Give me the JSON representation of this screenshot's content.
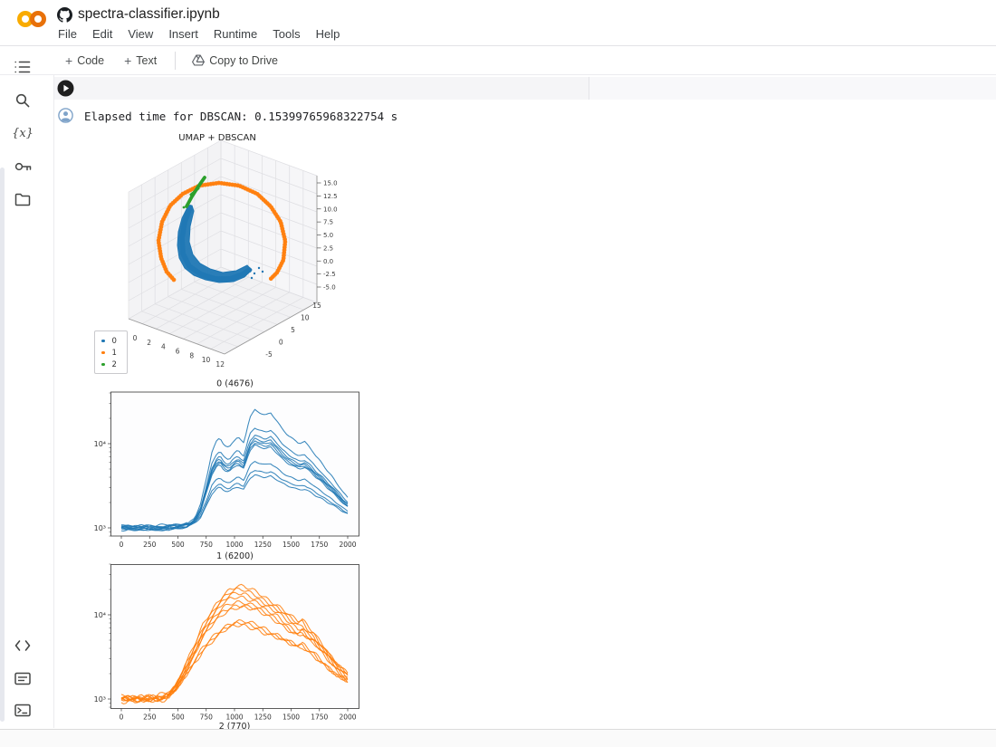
{
  "header": {
    "title": "spectra-classifier.ipynb",
    "menus": [
      "File",
      "Edit",
      "View",
      "Insert",
      "Runtime",
      "Tools",
      "Help"
    ]
  },
  "toolbar": {
    "add_code": "Code",
    "add_text": "Text",
    "plus": "+",
    "copy_to_drive": "Copy to Drive"
  },
  "sidebar": {
    "variables_glyph": "{x}"
  },
  "cell": {
    "output": "Elapsed time for DBSCAN: 0.15399765968322754 s"
  },
  "colors": {
    "logo_left": "#F9AB00",
    "logo_right": "#E8710A",
    "cluster_blue": "#1f77b4",
    "cluster_orange": "#ff7f0e",
    "cluster_green": "#2ca02c"
  },
  "chart_data": [
    {
      "type": "scatter3d",
      "title": "UMAP + DBSCAN",
      "legend": [
        "0",
        "1",
        "2"
      ],
      "legend_colors": [
        "#1f77b4",
        "#ff7f0e",
        "#2ca02c"
      ],
      "xticks": [
        "0",
        "2",
        "4",
        "6",
        "8",
        "10",
        "12"
      ],
      "yticks": [
        "15",
        "10",
        "5",
        "0",
        "-5"
      ],
      "zticks": [
        "15.0",
        "12.5",
        "10.0",
        "7.5",
        "5.0",
        "2.5",
        "0.0",
        "-2.5",
        "-5.0"
      ],
      "clusters": [
        {
          "label": "0",
          "color": "#1f77b4",
          "outline": [
            [
              108,
              82
            ],
            [
              101,
              96
            ],
            [
              97,
              111
            ],
            [
              96,
              126
            ],
            [
              98,
              140
            ],
            [
              104,
              151
            ],
            [
              114,
              159
            ],
            [
              127,
              164
            ],
            [
              142,
              167
            ],
            [
              158,
              166
            ],
            [
              170,
              161
            ],
            [
              178,
              153
            ],
            [
              173,
              148
            ],
            [
              161,
              154
            ],
            [
              146,
              156
            ],
            [
              132,
              152
            ],
            [
              121,
              146
            ],
            [
              113,
              136
            ],
            [
              109,
              122
            ],
            [
              110,
              105
            ],
            [
              114,
              88
            ],
            [
              112,
              82
            ]
          ],
          "spine": [
            [
              110,
              84
            ],
            [
              104,
              100
            ],
            [
              101,
              118
            ],
            [
              102,
              135
            ],
            [
              109,
              149
            ],
            [
              122,
              158
            ],
            [
              138,
              163
            ],
            [
              154,
              163
            ],
            [
              168,
              158
            ],
            [
              177,
              152
            ]
          ],
          "dots": [
            [
              181,
              157
            ],
            [
              186,
              151
            ],
            [
              178,
              162
            ],
            [
              190,
              155
            ]
          ]
        },
        {
          "label": "1",
          "color": "#ff7f0e",
          "path": [
            [
              92,
              164
            ],
            [
              84,
              155
            ],
            [
              78,
              140
            ],
            [
              75,
              121
            ],
            [
              79,
              100
            ],
            [
              88,
              82
            ],
            [
              102,
              69
            ],
            [
              120,
              60
            ],
            [
              142,
              57
            ],
            [
              164,
              60
            ],
            [
              184,
              69
            ],
            [
              199,
              83
            ],
            [
              210,
              100
            ],
            [
              215,
              121
            ],
            [
              213,
              142
            ],
            [
              206,
              156
            ],
            [
              199,
              163
            ]
          ]
        },
        {
          "label": "2",
          "color": "#2ca02c",
          "path": [
            [
              106,
              83
            ],
            [
              112,
              72
            ],
            [
              119,
              61
            ],
            [
              126,
              51
            ]
          ],
          "branch": [
            [
              111,
              70
            ],
            [
              119,
              63
            ]
          ],
          "dots": [
            [
              103,
              84
            ]
          ]
        }
      ]
    },
    {
      "type": "line",
      "title": "0 (4676)",
      "color": "#1f77b4",
      "xticks": [
        0,
        250,
        500,
        750,
        1000,
        1250,
        1500,
        1750,
        2000
      ],
      "ytick_labels": [
        "10³",
        "10⁴"
      ],
      "ytick_logs": [
        3,
        4
      ],
      "xlim": [
        0,
        2000
      ],
      "ylog_range": [
        2.9,
        4.61
      ],
      "base_curve": [
        [
          0,
          3.0
        ],
        [
          100,
          3.0
        ],
        [
          200,
          3.0
        ],
        [
          300,
          3.0
        ],
        [
          400,
          3.01
        ],
        [
          500,
          3.02
        ],
        [
          550,
          3.04
        ],
        [
          600,
          3.06
        ],
        [
          650,
          3.12
        ],
        [
          700,
          3.28
        ],
        [
          750,
          3.58
        ],
        [
          800,
          3.9
        ],
        [
          840,
          4.03
        ],
        [
          870,
          4.08
        ],
        [
          910,
          3.98
        ],
        [
          950,
          3.95
        ],
        [
          990,
          4.03
        ],
        [
          1030,
          4.08
        ],
        [
          1060,
          4.03
        ],
        [
          1085,
          4.0
        ],
        [
          1110,
          4.18
        ],
        [
          1140,
          4.32
        ],
        [
          1180,
          4.4
        ],
        [
          1220,
          4.37
        ],
        [
          1270,
          4.34
        ],
        [
          1320,
          4.37
        ],
        [
          1370,
          4.28
        ],
        [
          1420,
          4.18
        ],
        [
          1470,
          4.1
        ],
        [
          1520,
          4.05
        ],
        [
          1570,
          4.0
        ],
        [
          1620,
          4.02
        ],
        [
          1670,
          3.95
        ],
        [
          1720,
          3.85
        ],
        [
          1770,
          3.78
        ],
        [
          1820,
          3.68
        ],
        [
          1870,
          3.6
        ],
        [
          1920,
          3.5
        ],
        [
          1960,
          3.42
        ],
        [
          2000,
          3.36
        ]
      ],
      "curve_scales": [
        1.0,
        0.85,
        0.79,
        0.76,
        0.74,
        0.72,
        0.7,
        0.56,
        0.49,
        0.45
      ]
    },
    {
      "type": "line",
      "title": "1 (6200)",
      "color": "#ff7f0e",
      "xticks": [
        0,
        250,
        500,
        750,
        1000,
        1250,
        1500,
        1750,
        2000
      ],
      "ytick_labels": [
        "10³",
        "10⁴"
      ],
      "ytick_logs": [
        3,
        4
      ],
      "xlim": [
        0,
        2000
      ],
      "ylog_range": [
        2.9,
        4.61
      ],
      "base_curve": [
        [
          0,
          3.0
        ],
        [
          100,
          3.0
        ],
        [
          200,
          3.0
        ],
        [
          300,
          3.01
        ],
        [
          360,
          3.02
        ],
        [
          420,
          3.06
        ],
        [
          480,
          3.16
        ],
        [
          540,
          3.32
        ],
        [
          600,
          3.5
        ],
        [
          660,
          3.68
        ],
        [
          720,
          3.88
        ],
        [
          780,
          4.02
        ],
        [
          840,
          4.14
        ],
        [
          900,
          4.24
        ],
        [
          960,
          4.3
        ],
        [
          1020,
          4.33
        ],
        [
          1080,
          4.33
        ],
        [
          1140,
          4.3
        ],
        [
          1200,
          4.27
        ],
        [
          1260,
          4.22
        ],
        [
          1320,
          4.17
        ],
        [
          1380,
          4.12
        ],
        [
          1440,
          4.05
        ],
        [
          1500,
          3.98
        ],
        [
          1560,
          3.92
        ],
        [
          1600,
          3.94
        ],
        [
          1650,
          3.85
        ],
        [
          1700,
          3.8
        ],
        [
          1750,
          3.7
        ],
        [
          1800,
          3.62
        ],
        [
          1850,
          3.52
        ],
        [
          1900,
          3.43
        ],
        [
          1950,
          3.36
        ],
        [
          2000,
          3.3
        ]
      ],
      "curve_scales": [
        1.0,
        0.97,
        0.94,
        0.91,
        0.87,
        0.84,
        0.82,
        0.69,
        0.67,
        0.65
      ]
    },
    {
      "type": "line",
      "title": "2 (770)",
      "partial": true
    }
  ]
}
